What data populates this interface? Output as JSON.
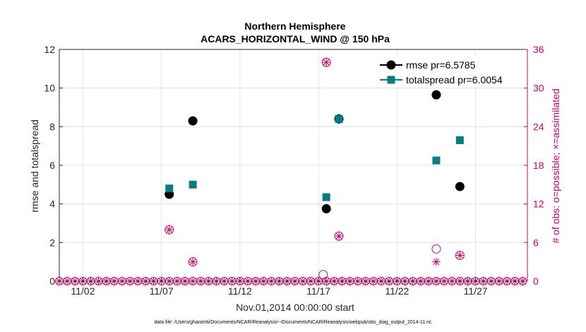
{
  "chart_data": {
    "type": "scatter",
    "title": [
      "Northern Hemisphere",
      "ACARS_HORIZONTAL_WIND @ 150 hPa"
    ],
    "xlabel": "Nov.01,2014 00:00:00 start",
    "ylabel": "rmse and totalspread",
    "ylabel_right": "# of obs: o=possible; ×=assimilated",
    "footnote": "data file: /Users/gharamti/Documents/NCAR/Reanalysis/~/Documents/NCAR/Reanalysis/webpub/obs_diag_output_2014-11.nc",
    "x_range": [
      0.5,
      30.3
    ],
    "x_ticks": [
      {
        "day": 2,
        "label": "11/02"
      },
      {
        "day": 7,
        "label": "11/07"
      },
      {
        "day": 12,
        "label": "11/12"
      },
      {
        "day": 17,
        "label": "11/17"
      },
      {
        "day": 22,
        "label": "11/22"
      },
      {
        "day": 27,
        "label": "11/27"
      }
    ],
    "ylim": [
      0,
      12
    ],
    "y_ticks": [
      0,
      2,
      4,
      6,
      8,
      10,
      12
    ],
    "ylim_right": [
      0,
      36
    ],
    "y_ticks_right": [
      0,
      6,
      12,
      18,
      24,
      30,
      36
    ],
    "grid": true,
    "legend_position": "top-right",
    "colors": {
      "rmse": "#000000",
      "totalspread": "#008080",
      "obs": "#cc0066",
      "axis": "#262626",
      "grid": "#dedede"
    },
    "series": [
      {
        "name": "rmse pr=6.5785",
        "axis": "left",
        "marker": "circle",
        "points": [
          [
            7.5,
            4.5
          ],
          [
            9.0,
            8.3
          ],
          [
            17.5,
            3.75
          ],
          [
            18.3,
            8.4
          ],
          [
            24.5,
            9.65
          ],
          [
            26.0,
            4.9
          ]
        ]
      },
      {
        "name": "totalspread pr=6.0054",
        "axis": "left",
        "marker": "square",
        "points": [
          [
            7.5,
            4.8
          ],
          [
            9.0,
            5.0
          ],
          [
            17.5,
            4.35
          ],
          [
            18.3,
            8.4
          ],
          [
            24.5,
            6.25
          ],
          [
            26.0,
            7.3
          ]
        ]
      },
      {
        "name": "possible",
        "axis": "right",
        "marker": "open-circle",
        "points": [
          [
            7.5,
            8
          ],
          [
            9.0,
            3
          ],
          [
            17.3,
            1
          ],
          [
            17.5,
            34
          ],
          [
            18.3,
            7
          ],
          [
            24.5,
            5
          ],
          [
            26.0,
            4
          ]
        ]
      },
      {
        "name": "assimilated",
        "axis": "right",
        "marker": "asterisk",
        "points": [
          [
            7.5,
            8
          ],
          [
            9.0,
            3
          ],
          [
            17.5,
            34
          ],
          [
            18.3,
            7
          ],
          [
            24.5,
            3
          ],
          [
            26.0,
            4
          ]
        ]
      }
    ],
    "zero_marker_days": [
      0.5,
      1.0,
      1.5,
      2.0,
      2.5,
      3.0,
      3.5,
      4.0,
      4.5,
      5.0,
      5.5,
      6.0,
      6.5,
      7.0,
      7.5,
      8.0,
      8.5,
      9.0,
      9.5,
      10.0,
      10.5,
      11.0,
      11.5,
      12.0,
      12.5,
      13.0,
      13.5,
      14.0,
      14.5,
      15.0,
      15.5,
      16.0,
      16.5,
      17.0,
      17.5,
      18.0,
      18.5,
      19.0,
      19.5,
      20.0,
      20.5,
      21.0,
      21.5,
      22.0,
      22.5,
      23.0,
      23.5,
      24.0,
      24.5,
      25.0,
      25.5,
      26.0,
      26.5,
      27.0,
      27.5,
      28.0,
      28.5,
      29.0,
      29.5,
      30.0
    ]
  }
}
